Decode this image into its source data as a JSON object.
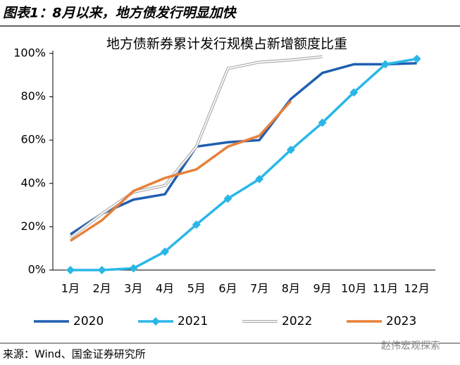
{
  "header": {
    "title": "图表1：8月以来，地方债发行明显加快"
  },
  "chart_data": {
    "type": "line",
    "title": "地方债新券累计发行规模占新增额度比重",
    "categories": [
      "1月",
      "2月",
      "3月",
      "4月",
      "5月",
      "6月",
      "7月",
      "8月",
      "9月",
      "10月",
      "11月",
      "12月"
    ],
    "series": [
      {
        "name": "2020",
        "color": "#1f5fb0",
        "values": [
          16.5,
          26,
          32.5,
          35,
          57,
          59,
          60,
          79,
          91,
          95,
          95,
          95.5
        ]
      },
      {
        "name": "2021",
        "color": "#2ab7e8",
        "marker": "diamond",
        "values": [
          0,
          0,
          0.8,
          8.5,
          21,
          33,
          42,
          55.5,
          68,
          82,
          95,
          97.5
        ]
      },
      {
        "name": "2022",
        "color": "#a6a6a6",
        "style": "double",
        "values": [
          15,
          26,
          36,
          39,
          57,
          93,
          96,
          97,
          98.5,
          null,
          null,
          null
        ]
      },
      {
        "name": "2023",
        "color": "#e8803a",
        "values": [
          13.5,
          23,
          36.5,
          42.5,
          46.5,
          57,
          62,
          78,
          null,
          null,
          null,
          null
        ]
      }
    ],
    "ylim": [
      0,
      100
    ],
    "yticks": [
      {
        "value": 0,
        "label": "0%"
      },
      {
        "value": 20,
        "label": "20%"
      },
      {
        "value": 40,
        "label": "40%"
      },
      {
        "value": 60,
        "label": "60%"
      },
      {
        "value": 80,
        "label": "80%"
      },
      {
        "value": 100,
        "label": "100%"
      }
    ],
    "legend": "bottom"
  },
  "footer": {
    "source": "来源：Wind、国金证券研究所",
    "watermark": "赵伟宏观探索"
  }
}
